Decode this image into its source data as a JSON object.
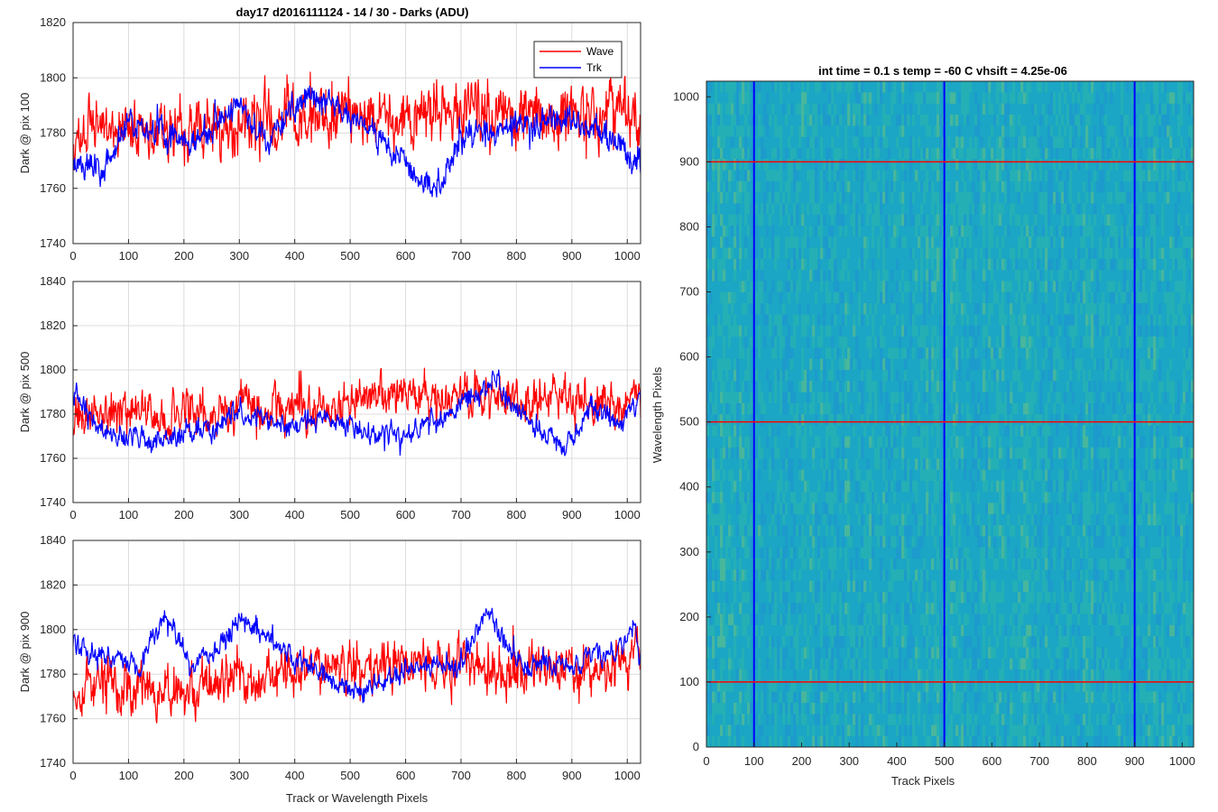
{
  "chart_data": [
    {
      "type": "line",
      "title": "day17 d2016111124 - 14 / 30 - Darks (ADU)",
      "ylabel": "Dark @ pix 100",
      "xlabel": "",
      "xlim": [
        0,
        1024
      ],
      "ylim": [
        1740,
        1820
      ],
      "xticks": [
        "0",
        "100",
        "200",
        "300",
        "400",
        "500",
        "600",
        "700",
        "800",
        "900",
        "1000"
      ],
      "yticks": [
        "1740",
        "1760",
        "1780",
        "1800",
        "1820"
      ],
      "grid": true,
      "legend": {
        "placement": "top-right",
        "entries": [
          "Wave",
          "Trk"
        ]
      },
      "series": [
        {
          "name": "Wave",
          "color": "#ff0000",
          "mean": 1782,
          "noise": 9,
          "seed": 11,
          "anchors": [
            [
              0,
              1781
            ],
            [
              200,
              1780
            ],
            [
              400,
              1786
            ],
            [
              500,
              1786
            ],
            [
              700,
              1788
            ],
            [
              900,
              1786
            ],
            [
              1024,
              1788
            ]
          ]
        },
        {
          "name": "Trk",
          "color": "#0000ff",
          "mean": 1776,
          "noise": 4,
          "seed": 23,
          "anchors": [
            [
              0,
              1770
            ],
            [
              50,
              1766
            ],
            [
              100,
              1785
            ],
            [
              160,
              1780
            ],
            [
              200,
              1776
            ],
            [
              300,
              1790
            ],
            [
              350,
              1776
            ],
            [
              400,
              1790
            ],
            [
              450,
              1795
            ],
            [
              500,
              1786
            ],
            [
              580,
              1774
            ],
            [
              630,
              1762
            ],
            [
              650,
              1758
            ],
            [
              700,
              1778
            ],
            [
              760,
              1781
            ],
            [
              830,
              1784
            ],
            [
              900,
              1785
            ],
            [
              960,
              1780
            ],
            [
              1024,
              1769
            ]
          ]
        }
      ]
    },
    {
      "type": "line",
      "title": "",
      "ylabel": "Dark @ pix 500",
      "xlabel": "",
      "xlim": [
        0,
        1024
      ],
      "ylim": [
        1740,
        1840
      ],
      "xticks": [
        "0",
        "100",
        "200",
        "300",
        "400",
        "500",
        "600",
        "700",
        "800",
        "900",
        "1000"
      ],
      "yticks": [
        "1740",
        "1760",
        "1780",
        "1800",
        "1820",
        "1840"
      ],
      "grid": true,
      "series": [
        {
          "name": "Wave",
          "color": "#ff0000",
          "mean": 1782,
          "noise": 8,
          "seed": 37,
          "anchors": [
            [
              0,
              1780
            ],
            [
              200,
              1780
            ],
            [
              400,
              1783
            ],
            [
              500,
              1786
            ],
            [
              700,
              1790
            ],
            [
              800,
              1786
            ],
            [
              1024,
              1787
            ]
          ]
        },
        {
          "name": "Trk",
          "color": "#0000ff",
          "mean": 1775,
          "noise": 4,
          "seed": 41,
          "anchors": [
            [
              0,
              1790
            ],
            [
              50,
              1772
            ],
            [
              150,
              1768
            ],
            [
              250,
              1773
            ],
            [
              300,
              1782
            ],
            [
              380,
              1774
            ],
            [
              450,
              1778
            ],
            [
              550,
              1770
            ],
            [
              600,
              1770
            ],
            [
              700,
              1784
            ],
            [
              760,
              1795
            ],
            [
              820,
              1776
            ],
            [
              890,
              1765
            ],
            [
              940,
              1783
            ],
            [
              990,
              1775
            ],
            [
              1024,
              1790
            ]
          ]
        }
      ]
    },
    {
      "type": "line",
      "title": "",
      "ylabel": "Dark @ pix 900",
      "xlabel": "Track or Wavelength Pixels",
      "xlim": [
        0,
        1024
      ],
      "ylim": [
        1740,
        1840
      ],
      "xticks": [
        "0",
        "100",
        "200",
        "300",
        "400",
        "500",
        "600",
        "700",
        "800",
        "900",
        "1000"
      ],
      "yticks": [
        "1740",
        "1760",
        "1780",
        "1800",
        "1820",
        "1840"
      ],
      "grid": true,
      "series": [
        {
          "name": "Wave",
          "color": "#ff0000",
          "mean": 1779,
          "noise": 9,
          "seed": 53,
          "anchors": [
            [
              0,
              1775
            ],
            [
              200,
              1772
            ],
            [
              400,
              1780
            ],
            [
              600,
              1785
            ],
            [
              700,
              1786
            ],
            [
              800,
              1782
            ],
            [
              1024,
              1786
            ]
          ]
        },
        {
          "name": "Trk",
          "color": "#0000ff",
          "mean": 1787,
          "noise": 4,
          "seed": 59,
          "anchors": [
            [
              0,
              1795
            ],
            [
              50,
              1788
            ],
            [
              120,
              1784
            ],
            [
              170,
              1808
            ],
            [
              210,
              1784
            ],
            [
              250,
              1790
            ],
            [
              310,
              1806
            ],
            [
              380,
              1790
            ],
            [
              460,
              1778
            ],
            [
              520,
              1772
            ],
            [
              600,
              1782
            ],
            [
              700,
              1784
            ],
            [
              750,
              1808
            ],
            [
              800,
              1786
            ],
            [
              900,
              1784
            ],
            [
              980,
              1790
            ],
            [
              1010,
              1804
            ],
            [
              1024,
              1788
            ]
          ]
        }
      ]
    },
    {
      "type": "heatmap",
      "title": "int time = 0.1 s   temp = -60 C   vhsift = 4.25e-06",
      "xlabel": "Track Pixels",
      "ylabel": "Wavelength Pixels",
      "xlim": [
        0,
        1024
      ],
      "ylim": [
        0,
        1024
      ],
      "xticks": [
        "0",
        "100",
        "200",
        "300",
        "400",
        "500",
        "600",
        "700",
        "800",
        "900",
        "1000"
      ],
      "yticks": [
        "0",
        "100",
        "200",
        "300",
        "400",
        "500",
        "600",
        "700",
        "800",
        "900",
        "1000"
      ],
      "colormap": [
        "#1f8fd4",
        "#1aa6c4",
        "#2db8a8",
        "#6cc27d"
      ],
      "vertical_lines": {
        "color": "#0000ff",
        "x": [
          100,
          500,
          900
        ]
      },
      "horizontal_lines": {
        "color": "#ff0000",
        "y": [
          100,
          500,
          900
        ]
      }
    }
  ]
}
